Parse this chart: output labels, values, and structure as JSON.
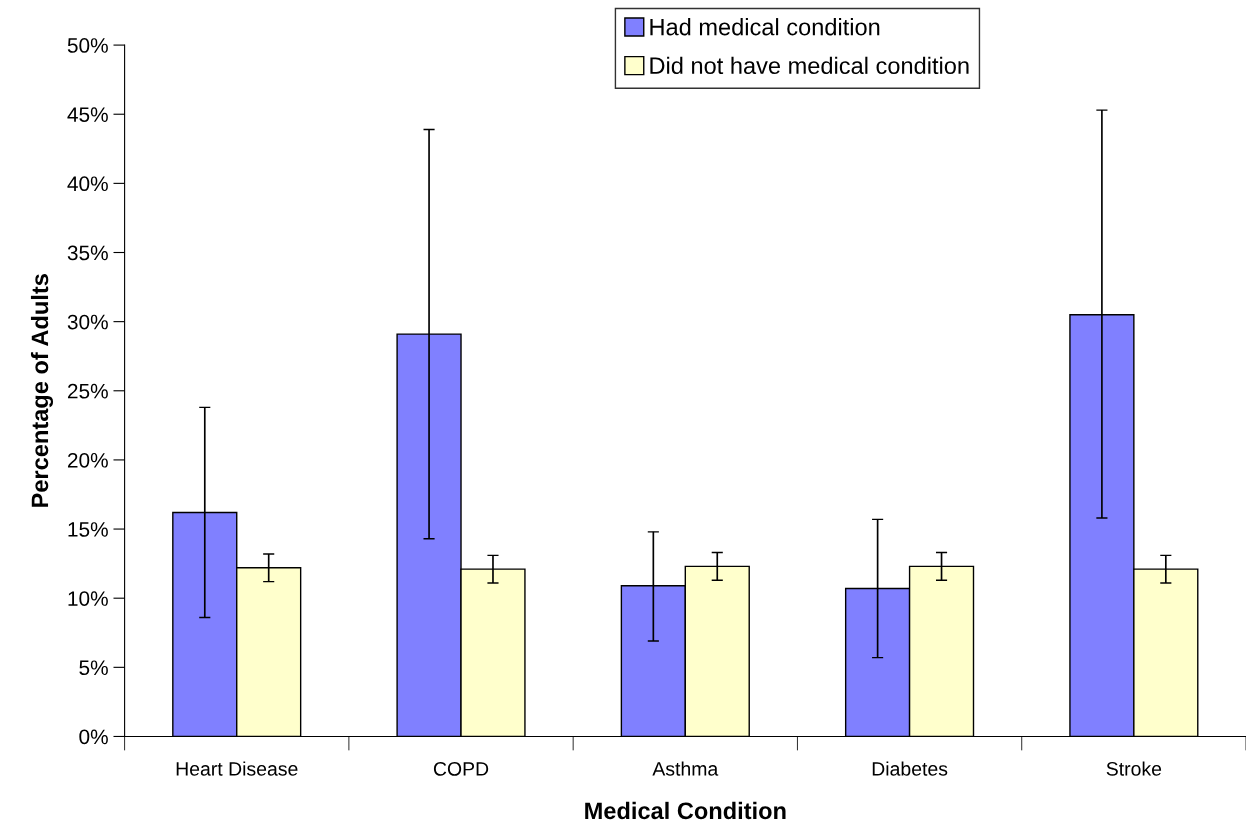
{
  "chart_data": {
    "type": "bar",
    "xlabel": "Medical Condition",
    "ylabel": "Percentage of Adults",
    "categories": [
      "Heart Disease",
      "COPD",
      "Asthma",
      "Diabetes",
      "Stroke"
    ],
    "series": [
      {
        "name": "Had medical condition",
        "color": "#8080ff",
        "values": [
          16.2,
          29.1,
          10.9,
          10.7,
          30.5
        ],
        "errors": [
          [
            8.6,
            23.8
          ],
          [
            14.3,
            43.9
          ],
          [
            6.9,
            14.8
          ],
          [
            5.7,
            15.7
          ],
          [
            15.8,
            45.3
          ]
        ]
      },
      {
        "name": "Did not have medical condition",
        "color": "#ffffcc",
        "values": [
          12.2,
          12.1,
          12.3,
          12.3,
          12.1
        ],
        "errors": [
          [
            11.2,
            13.2
          ],
          [
            11.1,
            13.1
          ],
          [
            11.3,
            13.3
          ],
          [
            11.3,
            13.3
          ],
          [
            11.1,
            13.1
          ]
        ]
      }
    ],
    "ylim": [
      0,
      50
    ],
    "yticks": [
      {
        "value": 0,
        "label": "0%"
      },
      {
        "value": 5,
        "label": "5%"
      },
      {
        "value": 10,
        "label": "10%"
      },
      {
        "value": 15,
        "label": "15%"
      },
      {
        "value": 20,
        "label": "20%"
      },
      {
        "value": 25,
        "label": "25%"
      },
      {
        "value": 30,
        "label": "30%"
      },
      {
        "value": 35,
        "label": "35%"
      },
      {
        "value": 40,
        "label": "40%"
      },
      {
        "value": 45,
        "label": "45%"
      },
      {
        "value": 50,
        "label": "50%"
      }
    ],
    "grid": false,
    "legend": "top"
  }
}
